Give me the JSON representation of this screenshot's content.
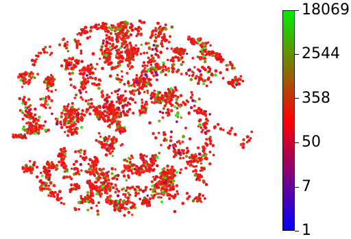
{
  "chart_data": {
    "type": "scatter",
    "title": "",
    "xlabel": "",
    "ylabel": "",
    "axes_visible": false,
    "colormap": [
      "#0000ff",
      "#ff0000",
      "#00ee00"
    ],
    "colorbar": {
      "scale": "log",
      "range": [
        1,
        18069
      ],
      "tick_labels": [
        "1",
        "7",
        "50",
        "358",
        "2544",
        "18069"
      ],
      "tick_values": [
        1,
        7,
        50,
        358,
        2544,
        18069
      ]
    },
    "point_count_approx": 3000,
    "dominant_color": "#ff1a1a"
  }
}
